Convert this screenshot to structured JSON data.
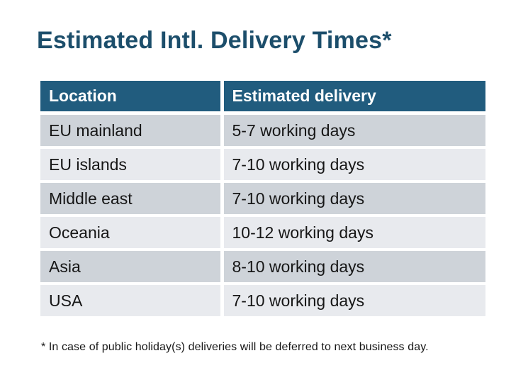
{
  "page": {
    "title": "Estimated Intl. Delivery Times*",
    "footnote": "* In case of public holiday(s) deliveries will be deferred to next business day."
  },
  "table": {
    "headers": [
      "Location",
      "Estimated delivery"
    ],
    "rows": [
      {
        "location": "EU mainland",
        "delivery": "5-7 working days"
      },
      {
        "location": "EU islands",
        "delivery": "7-10 working days"
      },
      {
        "location": "Middle east",
        "delivery": "7-10 working days"
      },
      {
        "location": "Oceania",
        "delivery": "10-12 working days"
      },
      {
        "location": "Asia",
        "delivery": "8-10 working days"
      },
      {
        "location": "USA",
        "delivery": "7-10 working days"
      }
    ]
  },
  "colors": {
    "header_bg": "#215c7e",
    "header_text": "#ffffff",
    "row_odd_bg": "#ced3d9",
    "row_even_bg": "#e8eaee",
    "title_text": "#1c4e6b",
    "body_text": "#161616",
    "background": "#ffffff"
  }
}
